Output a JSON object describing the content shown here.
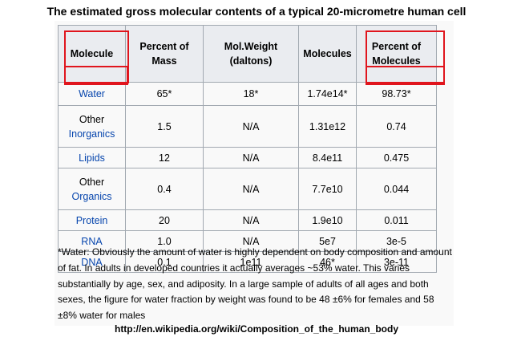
{
  "title": "The estimated gross molecular contents of a typical 20-micrometre human cell",
  "table": {
    "headers": {
      "molecule": "Molecule",
      "percent_mass_1": "Percent of",
      "percent_mass_2": "Mass",
      "mol_weight_1": "Mol.Weight",
      "mol_weight_2": "(daltons)",
      "molecules": "Molecules",
      "percent_molecules_1": "Percent of",
      "percent_molecules_2": "Molecules"
    },
    "rows": [
      {
        "name_1": "",
        "name_2": "Water",
        "mass": "65*",
        "weight": "18*",
        "count": "1.74e14*",
        "pct": "98.73*"
      },
      {
        "name_1": "Other",
        "name_2": "Inorganics",
        "mass": "1.5",
        "weight": "N/A",
        "count": "1.31e12",
        "pct": "0.74"
      },
      {
        "name_1": "",
        "name_2": "Lipids",
        "mass": "12",
        "weight": "N/A",
        "count": "8.4e11",
        "pct": "0.475"
      },
      {
        "name_1": "Other",
        "name_2": "Organics",
        "mass": "0.4",
        "weight": "N/A",
        "count": "7.7e10",
        "pct": "0.044"
      },
      {
        "name_1": "",
        "name_2": "Protein",
        "mass": "20",
        "weight": "N/A",
        "count": "1.9e10",
        "pct": "0.011"
      },
      {
        "name_1": "",
        "name_2": "RNA",
        "mass": "1.0",
        "weight": "N/A",
        "count": "5e7",
        "pct": "3e-5"
      },
      {
        "name_1": "",
        "name_2": "DNA",
        "mass": "0.1",
        "weight": "1e11",
        "count": "46*",
        "pct": "3e-11"
      }
    ]
  },
  "footnote": "*Water: Obviously the amount of water is highly dependent on body composition and amount of fat. In adults in developed countries it actually averages ~53% water. This varies substantially by age, sex, and adiposity. In a large sample of adults of all ages and both sexes, the figure for water fraction by weight was found to be 48 ±6% for females and 58 ±8% water for males",
  "source": "http://en.wikipedia.org/wiki/Composition_of_the_human_body",
  "colors": {
    "link": "#0645ad",
    "highlight": "#e0151d",
    "header_bg": "#eaecf0"
  }
}
